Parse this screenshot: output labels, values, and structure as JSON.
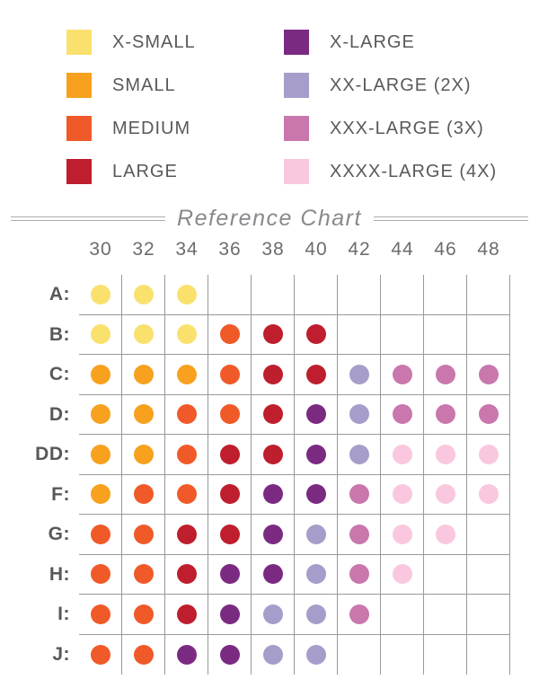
{
  "colors": {
    "background": "#FFFFFF",
    "grid_line": "#97999B",
    "row_label_text": "#57585A",
    "column_header_text": "#6B6C6F",
    "title_text": "#87898C",
    "legend_label_text": "#58595B"
  },
  "legend": {
    "items": [
      {
        "label": "X-SMALL",
        "size_key": "XS",
        "color": "#FAE16E"
      },
      {
        "label": "SMALL",
        "size_key": "S",
        "color": "#F7A11E"
      },
      {
        "label": "MEDIUM",
        "size_key": "M",
        "color": "#F05A28"
      },
      {
        "label": "LARGE",
        "size_key": "L",
        "color": "#BE1E2D"
      },
      {
        "label": "X-LARGE",
        "size_key": "XL",
        "color": "#7B2A82"
      },
      {
        "label": "XX-LARGE (2X)",
        "size_key": "2X",
        "color": "#A69DCA"
      },
      {
        "label": "XXX-LARGE (3X)",
        "size_key": "3X",
        "color": "#C977AD"
      },
      {
        "label": "XXXX-LARGE (4X)",
        "size_key": "4X",
        "color": "#F9C8DE"
      }
    ]
  },
  "chart": {
    "title": "Reference Chart"
  },
  "grid": {
    "row_labels": [
      "A:",
      "B:",
      "C:",
      "D:",
      "DD:",
      "F:",
      "G:",
      "H:",
      "I:",
      "J:"
    ]
  },
  "chart_data": {
    "type": "heatmap",
    "title": "Reference Chart",
    "x_categories": [
      "30",
      "32",
      "34",
      "36",
      "38",
      "40",
      "42",
      "44",
      "46",
      "48"
    ],
    "y_categories": [
      "A",
      "B",
      "C",
      "D",
      "DD",
      "F",
      "G",
      "H",
      "I",
      "J"
    ],
    "legend_position": "top",
    "grid": true,
    "cells": [
      [
        "XS",
        "XS",
        "XS",
        null,
        null,
        null,
        null,
        null,
        null,
        null
      ],
      [
        "XS",
        "XS",
        "XS",
        "M",
        "L",
        "L",
        null,
        null,
        null,
        null
      ],
      [
        "S",
        "S",
        "S",
        "M",
        "L",
        "L",
        "2X",
        "3X",
        "3X",
        "3X"
      ],
      [
        "S",
        "S",
        "M",
        "M",
        "L",
        "XL",
        "2X",
        "3X",
        "3X",
        "3X"
      ],
      [
        "S",
        "S",
        "M",
        "L",
        "L",
        "XL",
        "2X",
        "4X",
        "4X",
        "4X"
      ],
      [
        "S",
        "M",
        "M",
        "L",
        "XL",
        "XL",
        "3X",
        "4X",
        "4X",
        "4X"
      ],
      [
        "M",
        "M",
        "L",
        "L",
        "XL",
        "2X",
        "3X",
        "4X",
        "4X",
        null
      ],
      [
        "M",
        "M",
        "L",
        "XL",
        "XL",
        "2X",
        "3X",
        "4X",
        null,
        null
      ],
      [
        "M",
        "M",
        "L",
        "XL",
        "2X",
        "2X",
        "3X",
        null,
        null,
        null
      ],
      [
        "M",
        "M",
        "XL",
        "XL",
        "2X",
        "2X",
        null,
        null,
        null,
        null
      ]
    ],
    "size_labels": {
      "XS": "X-SMALL",
      "S": "SMALL",
      "M": "MEDIUM",
      "L": "LARGE",
      "XL": "X-LARGE",
      "2X": "XX-LARGE (2X)",
      "3X": "XXX-LARGE (3X)",
      "4X": "XXXX-LARGE (4X)"
    }
  }
}
